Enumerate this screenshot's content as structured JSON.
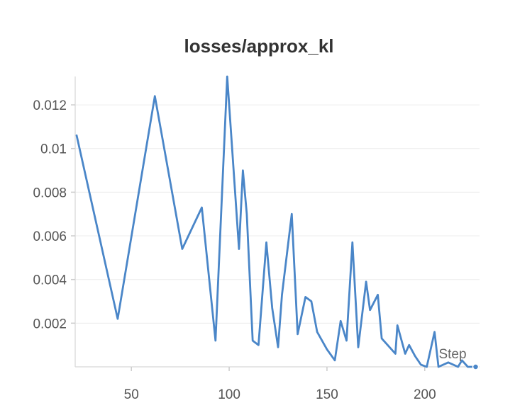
{
  "chart_data": {
    "type": "line",
    "title": "losses/approx_kl",
    "xlabel": "Step",
    "ylabel": "",
    "xlim": [
      22,
      228
    ],
    "ylim": [
      0,
      0.0133
    ],
    "x_ticks": [
      50,
      100,
      150,
      200
    ],
    "x_tick_labels": [
      "50",
      "100",
      "150",
      "200"
    ],
    "y_ticks": [
      0.002,
      0.004,
      0.006,
      0.008,
      0.01,
      0.012
    ],
    "y_tick_labels": [
      "0.002",
      "0.004",
      "0.006",
      "0.008",
      "0.01",
      "0.012"
    ],
    "grid": true,
    "line_color": "#4a86c8",
    "series": [
      {
        "x": [
          22,
          43,
          62,
          76,
          86,
          93,
          99,
          105,
          107,
          109,
          112,
          115,
          119,
          122,
          125,
          127,
          132,
          135,
          139,
          142,
          145,
          150,
          154,
          157,
          160,
          163,
          166,
          170,
          172,
          176,
          178,
          181,
          185,
          186,
          190,
          192,
          195,
          198,
          201,
          205,
          207,
          212,
          217,
          219,
          222,
          226
        ],
        "y": [
          0.0106,
          0.0022,
          0.0124,
          0.0054,
          0.0073,
          0.0012,
          0.0133,
          0.0054,
          0.009,
          0.007,
          0.0012,
          0.001,
          0.0057,
          0.0027,
          0.0009,
          0.0033,
          0.007,
          0.0015,
          0.0032,
          0.003,
          0.0016,
          0.0008,
          0.0003,
          0.0021,
          0.0012,
          0.0057,
          0.0009,
          0.0039,
          0.0026,
          0.0033,
          0.0013,
          0.001,
          0.0006,
          0.0019,
          0.0006,
          0.001,
          0.0005,
          0.0001,
          0.0,
          0.0016,
          0.0,
          0.0002,
          0.0,
          0.0003,
          0.0,
          0.0
        ]
      }
    ]
  }
}
